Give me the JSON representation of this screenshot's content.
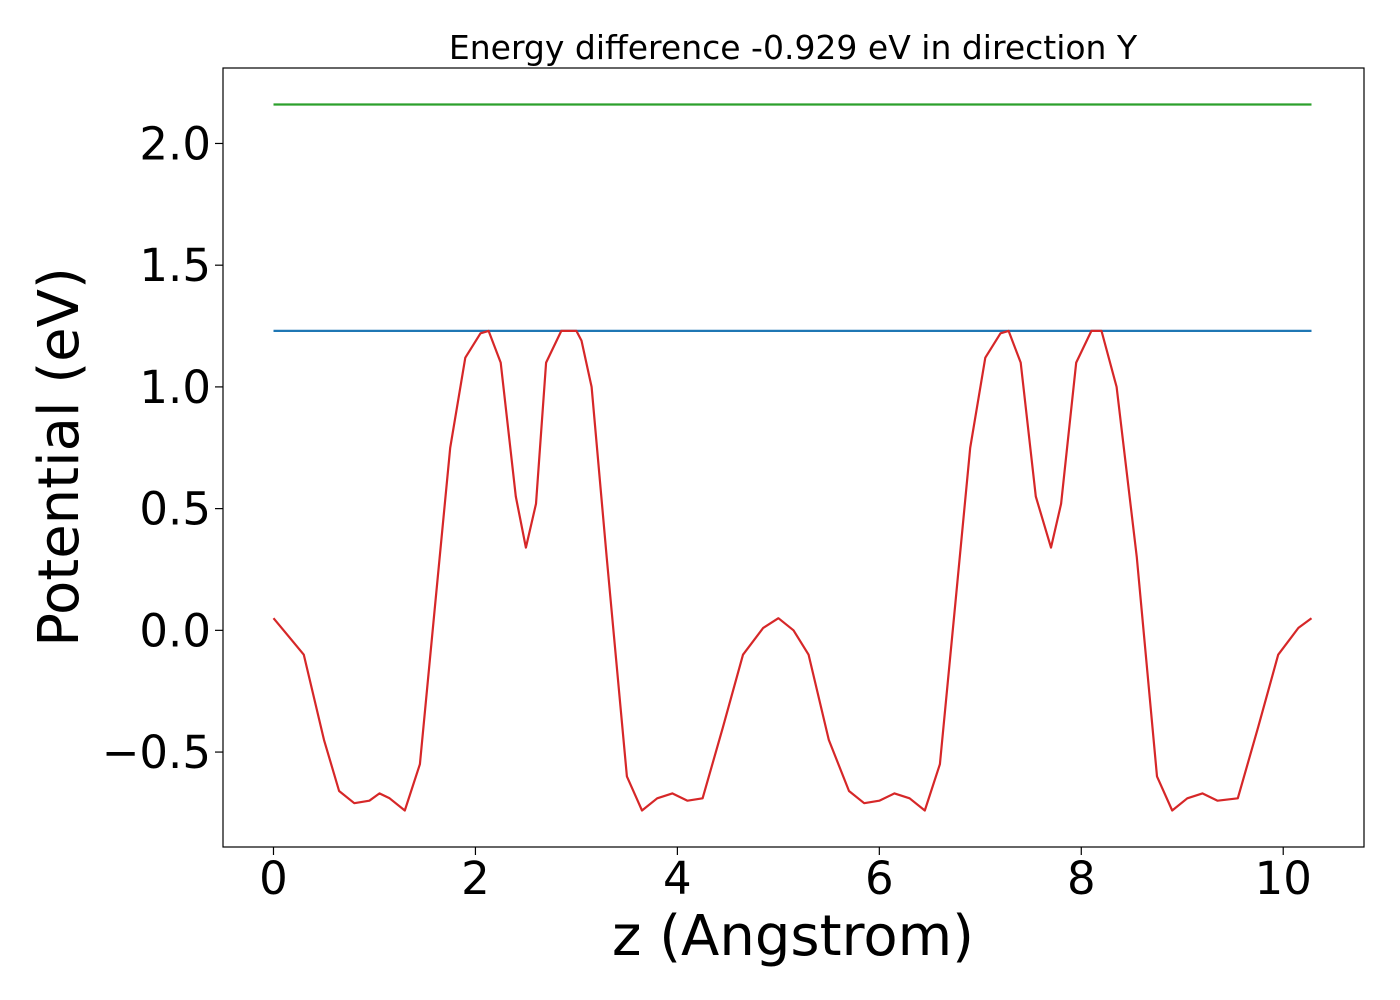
{
  "chart_data": {
    "type": "line",
    "title": "Energy difference -0.929 eV in direction Y",
    "xlabel": "z (Angstrom)",
    "ylabel": "Potential (eV)",
    "xlim": [
      -0.5,
      10.8
    ],
    "ylim": [
      -0.89,
      2.31
    ],
    "xticks": [
      0,
      2,
      4,
      6,
      8,
      10
    ],
    "xtick_labels": [
      "0",
      "2",
      "4",
      "6",
      "8",
      "10"
    ],
    "yticks": [
      -0.5,
      0.0,
      0.5,
      1.0,
      1.5,
      2.0
    ],
    "ytick_labels": [
      "−0.5",
      "0.0",
      "0.5",
      "1.0",
      "1.5",
      "2.0"
    ],
    "grid": false,
    "legend": "none",
    "series": [
      {
        "color": "#2ca02c",
        "x": [
          0,
          10.28
        ],
        "y": [
          2.16,
          2.16
        ]
      },
      {
        "color": "#1f77b4",
        "x": [
          0,
          10.28
        ],
        "y": [
          1.23,
          1.23
        ]
      },
      {
        "color": "#d62728",
        "x": [
          0.0,
          0.1,
          0.3,
          0.5,
          0.65,
          0.8,
          0.95,
          1.05,
          1.15,
          1.3,
          1.45,
          1.6,
          1.75,
          1.9,
          2.05,
          2.13,
          2.25,
          2.4,
          2.5,
          2.6,
          2.7,
          2.85,
          3.0,
          3.05,
          3.15,
          3.3,
          3.5,
          3.65,
          3.8,
          3.95,
          4.1,
          4.25,
          4.45,
          4.65,
          4.85,
          5.0,
          5.15,
          5.3,
          5.5,
          5.7,
          5.85,
          6.0,
          6.15,
          6.3,
          6.45,
          6.6,
          6.75,
          6.9,
          7.05,
          7.2,
          7.28,
          7.4,
          7.55,
          7.7,
          7.8,
          7.95,
          8.1,
          8.2,
          8.35,
          8.55,
          8.75,
          8.9,
          9.05,
          9.2,
          9.35,
          9.55,
          9.75,
          9.95,
          10.15,
          10.28
        ],
        "y": [
          0.05,
          0.0,
          -0.1,
          -0.45,
          -0.66,
          -0.71,
          -0.7,
          -0.67,
          -0.69,
          -0.74,
          -0.55,
          0.1,
          0.75,
          1.12,
          1.22,
          1.23,
          1.1,
          0.55,
          0.34,
          0.52,
          1.1,
          1.23,
          1.23,
          1.19,
          1.0,
          0.3,
          -0.6,
          -0.74,
          -0.69,
          -0.67,
          -0.7,
          -0.69,
          -0.4,
          -0.1,
          0.01,
          0.05,
          0.0,
          -0.1,
          -0.45,
          -0.66,
          -0.71,
          -0.7,
          -0.67,
          -0.69,
          -0.74,
          -0.55,
          0.1,
          0.75,
          1.12,
          1.22,
          1.23,
          1.1,
          0.55,
          0.34,
          0.52,
          1.1,
          1.23,
          1.23,
          1.0,
          0.3,
          -0.6,
          -0.74,
          -0.69,
          -0.67,
          -0.7,
          -0.69,
          -0.4,
          -0.1,
          0.01,
          0.05
        ]
      }
    ]
  }
}
